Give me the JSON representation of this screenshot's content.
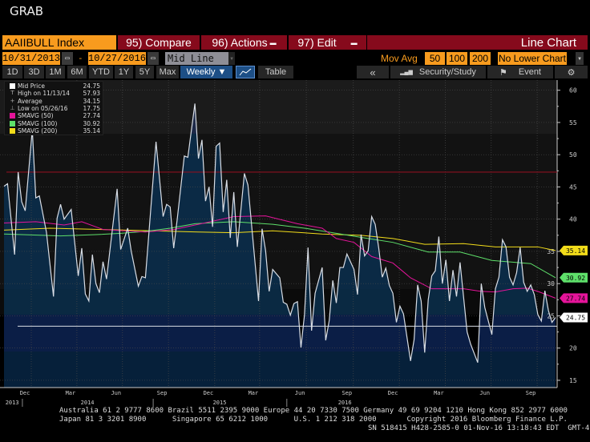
{
  "window_title": "GRAB",
  "toolbar": {
    "security": "AAIIBULL Index",
    "compare": "95) Compare",
    "actions": "96) Actions",
    "edit": "97) Edit",
    "chart_type": "Line Chart",
    "start_date": "10/31/2013",
    "date_sep": "-",
    "end_date": "10/27/2016",
    "mode": "Mid Line",
    "mov_avg_label": "Mov Avg",
    "mov_avgs": [
      "50",
      "100",
      "200"
    ],
    "lower_chart": "No Lower Chart",
    "periods": [
      "1D",
      "3D",
      "1M",
      "6M",
      "YTD",
      "1Y",
      "5Y",
      "Max"
    ],
    "frequency": "Weekly ▼",
    "table": "Table",
    "back": "«",
    "security_study": "Security/Study",
    "event": "Event"
  },
  "legend": [
    {
      "name": "Mid Price",
      "value": "24.75",
      "color": "#ffffff"
    },
    {
      "name": "High on 11/13/14",
      "value": "57.93",
      "marker": "T"
    },
    {
      "name": "Average",
      "value": "34.15",
      "marker": "+"
    },
    {
      "name": "Low on 05/26/16",
      "value": "17.75",
      "marker": "⊥"
    },
    {
      "name": "SMAVG (50)",
      "value": "27.74",
      "color": "#e5149a"
    },
    {
      "name": "SMAVG (100)",
      "value": "30.92",
      "color": "#5ee06a"
    },
    {
      "name": "SMAVG (200)",
      "value": "35.14",
      "color": "#f2dc1a"
    }
  ],
  "chart_data": {
    "type": "line",
    "title": "AAIIBULL Index",
    "x_unit": "weeks since 10/31/2013",
    "ylim": [
      15,
      60
    ],
    "y_ticks": [
      "60",
      "55",
      "50",
      "45",
      "40",
      "35",
      "30",
      "25",
      "20",
      "15"
    ],
    "x_ticks": [
      {
        "label": "Dec",
        "week": 5.9
      },
      {
        "label": "Mar",
        "week": 18.8
      },
      {
        "label": "Jun",
        "week": 31.7
      },
      {
        "label": "Sep",
        "week": 44.7
      },
      {
        "label": "Dec",
        "week": 57.8
      },
      {
        "label": "Mar",
        "week": 70.5
      },
      {
        "label": "Jun",
        "week": 83.7
      },
      {
        "label": "Sep",
        "week": 97
      },
      {
        "label": "Dec",
        "week": 110
      },
      {
        "label": "Mar",
        "week": 123
      },
      {
        "label": "Jun",
        "week": 136
      },
      {
        "label": "Sep",
        "week": 149
      }
    ],
    "year_labels": [
      {
        "label": "2013",
        "week": 2.3
      },
      {
        "label": "2014",
        "week": 23.6
      },
      {
        "label": "2015",
        "week": 61
      },
      {
        "label": "2016",
        "week": 96.4
      }
    ],
    "year_separators": [
      5.2,
      42.2,
      80
    ],
    "reference_lines": [
      {
        "value": 47.3,
        "color": "#8b1020"
      },
      {
        "value": 23.4,
        "color": "#d8dde5"
      }
    ],
    "series": [
      {
        "name": "Mid Price",
        "color": "#d8dde5",
        "last": "24.75",
        "points": [
          [
            0,
            45.1
          ],
          [
            1,
            45.5
          ],
          [
            3,
            34.5
          ],
          [
            4,
            47.3
          ],
          [
            5,
            42.7
          ],
          [
            6,
            41.3
          ],
          [
            8,
            53.9
          ],
          [
            9,
            43.3
          ],
          [
            10,
            43.6
          ],
          [
            12,
            38
          ],
          [
            14,
            28
          ],
          [
            15,
            40.1
          ],
          [
            16,
            42.3
          ],
          [
            17,
            40
          ],
          [
            19,
            41.5
          ],
          [
            21,
            31.2
          ],
          [
            22,
            35.5
          ],
          [
            23,
            28.4
          ],
          [
            24,
            27.3
          ],
          [
            25,
            34.5
          ],
          [
            26,
            30
          ],
          [
            27,
            28.6
          ],
          [
            28,
            33.4
          ],
          [
            29,
            30.7
          ],
          [
            32,
            44.7
          ],
          [
            33,
            35.3
          ],
          [
            35,
            38.6
          ],
          [
            36,
            35
          ],
          [
            38,
            29.6
          ],
          [
            39,
            31.1
          ],
          [
            40,
            30.9
          ],
          [
            43,
            52
          ],
          [
            45,
            40.4
          ],
          [
            46,
            42.3
          ],
          [
            47,
            41.9
          ],
          [
            48,
            35.5
          ],
          [
            49,
            40
          ],
          [
            51,
            49.8
          ],
          [
            52,
            49.6
          ],
          [
            54,
            57.93
          ],
          [
            55,
            49.4
          ],
          [
            56,
            52.3
          ],
          [
            57,
            42.8
          ],
          [
            58,
            45
          ],
          [
            59,
            38.8
          ],
          [
            60,
            51.3
          ],
          [
            61,
            51.8
          ],
          [
            62,
            41.1
          ],
          [
            63,
            46.1
          ],
          [
            64,
            37.1
          ],
          [
            65,
            44.2
          ],
          [
            66,
            35.7
          ],
          [
            68,
            47.1
          ],
          [
            69,
            45.3
          ],
          [
            72,
            27.3
          ],
          [
            73,
            38.5
          ],
          [
            74,
            35.1
          ],
          [
            75,
            28.8
          ],
          [
            76,
            32.2
          ],
          [
            78,
            30.9
          ],
          [
            79,
            27.1
          ],
          [
            80,
            26.8
          ],
          [
            81,
            25.1
          ],
          [
            82,
            26.9
          ],
          [
            83,
            27.2
          ],
          [
            84,
            20.1
          ],
          [
            85,
            25.2
          ],
          [
            86,
            35.6
          ],
          [
            87,
            22.7
          ],
          [
            88,
            28.5
          ],
          [
            90,
            32.5
          ],
          [
            91,
            21.2
          ],
          [
            92,
            24.3
          ],
          [
            93,
            30.5
          ],
          [
            94,
            27
          ],
          [
            95,
            32.5
          ],
          [
            96,
            32.5
          ],
          [
            97,
            34.6
          ],
          [
            99,
            32.2
          ],
          [
            100,
            28.3
          ],
          [
            101,
            37.6
          ],
          [
            102,
            34.3
          ],
          [
            103,
            35.1
          ],
          [
            104,
            40.4
          ],
          [
            105,
            39.2
          ],
          [
            106,
            35.5
          ],
          [
            107,
            31
          ],
          [
            108,
            32.4
          ],
          [
            109,
            29.7
          ],
          [
            110,
            28.5
          ],
          [
            111,
            24
          ],
          [
            112,
            26.5
          ],
          [
            113,
            25.3
          ],
          [
            115,
            18
          ],
          [
            116,
            21.3
          ],
          [
            117,
            29.8
          ],
          [
            118,
            27.3
          ],
          [
            119,
            19.3
          ],
          [
            120,
            27.5
          ],
          [
            121,
            31.2
          ],
          [
            122,
            32
          ],
          [
            123,
            37.3
          ],
          [
            124,
            30
          ],
          [
            125,
            33.7
          ],
          [
            126,
            27.3
          ],
          [
            127,
            32.1
          ],
          [
            128,
            28
          ],
          [
            129,
            33.3
          ],
          [
            131,
            22.5
          ],
          [
            132,
            20.6
          ],
          [
            134,
            17.75
          ],
          [
            135,
            30
          ],
          [
            136,
            26.3
          ],
          [
            138,
            22.1
          ],
          [
            139,
            29.2
          ],
          [
            140,
            31
          ],
          [
            141,
            36.8
          ],
          [
            142,
            35.7
          ],
          [
            143,
            31
          ],
          [
            144,
            29.8
          ],
          [
            145,
            31.7
          ],
          [
            146,
            35.6
          ],
          [
            147,
            30.2
          ],
          [
            148,
            28.8
          ],
          [
            149,
            29.8
          ],
          [
            150,
            28.3
          ],
          [
            151,
            25.2
          ],
          [
            152,
            24.2
          ],
          [
            153,
            28.9
          ],
          [
            154,
            25.8
          ],
          [
            155,
            24
          ],
          [
            156,
            24.75
          ]
        ]
      },
      {
        "name": "SMAVG (50)",
        "color": "#e5149a",
        "last": "27.74",
        "points": [
          [
            0,
            39.4
          ],
          [
            9,
            39.6
          ],
          [
            17,
            39.1
          ],
          [
            22,
            39.6
          ],
          [
            28,
            38.4
          ],
          [
            40,
            38
          ],
          [
            48,
            38.4
          ],
          [
            55,
            39.2
          ],
          [
            65,
            40.4
          ],
          [
            74,
            40.5
          ],
          [
            83,
            39.3
          ],
          [
            90,
            38.6
          ],
          [
            94,
            37
          ],
          [
            99,
            36.4
          ],
          [
            104,
            34.2
          ],
          [
            110,
            33.2
          ],
          [
            115,
            30.9
          ],
          [
            121,
            29.2
          ],
          [
            130,
            29.2
          ],
          [
            135,
            28.8
          ],
          [
            139,
            28.7
          ],
          [
            144,
            29.2
          ],
          [
            148,
            29.3
          ],
          [
            151,
            28.8
          ],
          [
            156,
            27.74
          ]
        ]
      },
      {
        "name": "SMAVG (100)",
        "color": "#5ee06a",
        "last": "30.92",
        "points": [
          [
            0,
            37.7
          ],
          [
            16,
            37.4
          ],
          [
            26,
            37.6
          ],
          [
            33,
            37.8
          ],
          [
            40,
            38.1
          ],
          [
            47,
            38.6
          ],
          [
            54,
            39.3
          ],
          [
            65,
            39.6
          ],
          [
            76,
            39.2
          ],
          [
            85,
            38.6
          ],
          [
            94,
            37.8
          ],
          [
            103,
            37
          ],
          [
            110,
            36.4
          ],
          [
            120,
            34.9
          ],
          [
            129,
            34.9
          ],
          [
            138,
            33.6
          ],
          [
            149,
            33.1
          ],
          [
            156,
            30.92
          ]
        ]
      },
      {
        "name": "SMAVG (200)",
        "color": "#f2dc1a",
        "last": "35.14",
        "points": [
          [
            0,
            38.3
          ],
          [
            13,
            38.6
          ],
          [
            28,
            38.4
          ],
          [
            42,
            38.2
          ],
          [
            55,
            38
          ],
          [
            65,
            37.9
          ],
          [
            76,
            38.2
          ],
          [
            90,
            37.7
          ],
          [
            101,
            37.5
          ],
          [
            110,
            37
          ],
          [
            119,
            36.1
          ],
          [
            130,
            36.2
          ],
          [
            139,
            35.7
          ],
          [
            151,
            35.7
          ],
          [
            156,
            35.14
          ]
        ]
      }
    ]
  },
  "footer": {
    "line1": "Australia 61 2 9777 8600 Brazil 5511 2395 9000 Europe 44 20 7330 7500 Germany 49 69 9204 1210 Hong Kong 852 2977 6000",
    "line2": "Japan 81 3 3201 8900      Singapore 65 6212 1000      U.S. 1 212 318 2000       Copyright 2016 Bloomberg Finance L.P.",
    "line3": "SN 518415 H428-2585-0 01-Nov-16 13:18:43 EDT  GMT-4:00"
  }
}
